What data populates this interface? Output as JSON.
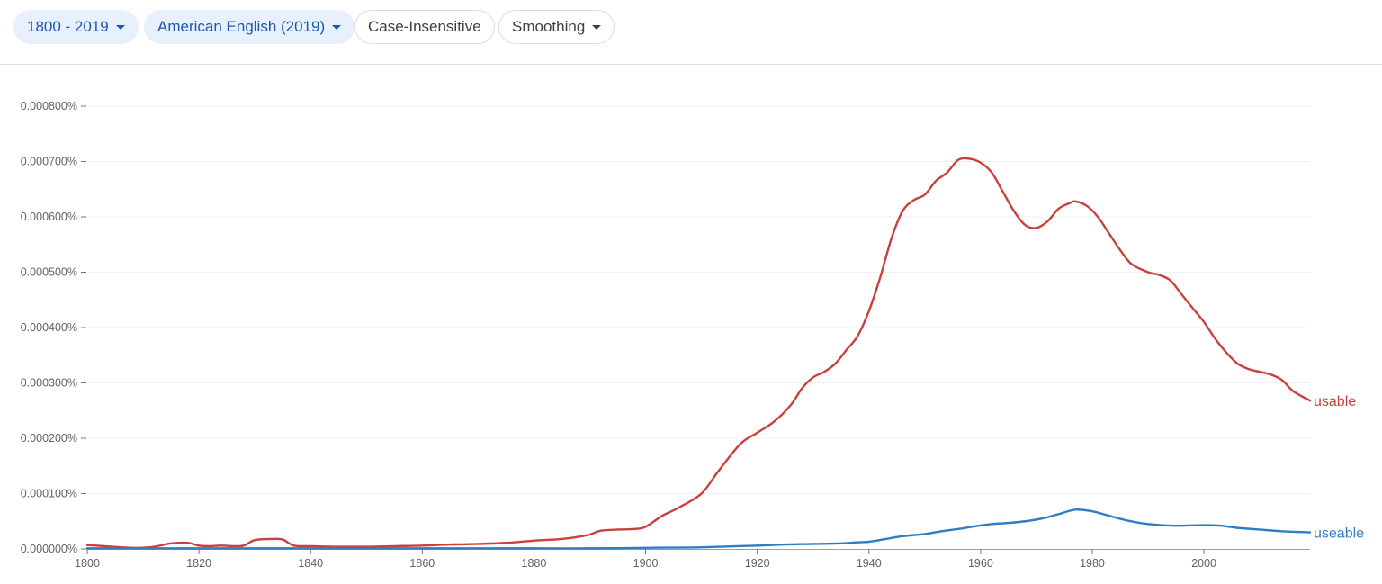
{
  "toolbar": {
    "years_label": "1800 - 2019",
    "corpus_label": "American English (2019)",
    "case_label": "Case-Insensitive",
    "smoothing_label": "Smoothing"
  },
  "colors": {
    "usable": "#c9403e",
    "useable": "#2f7ec4",
    "chip_selected_bg": "#e8f0fe",
    "chip_selected_text": "#1a57b0"
  },
  "chart_data": {
    "type": "line",
    "title": "",
    "xlabel": "",
    "ylabel": "",
    "xlim": [
      1800,
      2019
    ],
    "ylim": [
      0,
      8e-06
    ],
    "x_ticks": [
      1800,
      1820,
      1840,
      1860,
      1880,
      1900,
      1920,
      1940,
      1960,
      1980,
      2000
    ],
    "x_tick_labels": [
      "1800",
      "1820",
      "1840",
      "1860",
      "1880",
      "1900",
      "1920",
      "1940",
      "1960",
      "1980",
      "2000"
    ],
    "y_ticks": [
      0,
      1e-06,
      2e-06,
      3e-06,
      4e-06,
      5e-06,
      6e-06,
      7e-06,
      8e-06
    ],
    "y_tick_labels": [
      "0.000000%",
      "0.000100%",
      "0.000200%",
      "0.000300%",
      "0.000400%",
      "0.000500%",
      "0.000600%",
      "0.000700%",
      "0.000800%"
    ],
    "series": [
      {
        "name": "usable",
        "label": "usable",
        "color": "#c9403e",
        "x": [
          1800,
          1803,
          1806,
          1809,
          1812,
          1815,
          1818,
          1820,
          1822,
          1824,
          1826,
          1828,
          1830,
          1833,
          1835,
          1837,
          1840,
          1845,
          1850,
          1855,
          1860,
          1865,
          1870,
          1875,
          1880,
          1885,
          1888,
          1890,
          1892,
          1895,
          1898,
          1900,
          1903,
          1906,
          1910,
          1913,
          1917,
          1920,
          1923,
          1926,
          1928,
          1930,
          1932,
          1934,
          1936,
          1938,
          1940,
          1942,
          1944,
          1946,
          1948,
          1950,
          1952,
          1954,
          1956,
          1958,
          1960,
          1962,
          1964,
          1966,
          1968,
          1970,
          1972,
          1974,
          1976,
          1977,
          1979,
          1981,
          1983,
          1985,
          1987,
          1990,
          1992,
          1994,
          1996,
          1998,
          2000,
          2002,
          2004,
          2006,
          2008,
          2010,
          2012,
          2014,
          2016,
          2019
        ],
        "values": [
          7e-08,
          5e-08,
          3e-08,
          2e-08,
          4e-08,
          1e-07,
          1.1e-07,
          6e-08,
          5e-08,
          6e-08,
          5e-08,
          6e-08,
          1.6e-07,
          1.8e-07,
          1.7e-07,
          6e-08,
          5e-08,
          4e-08,
          4e-08,
          5e-08,
          6e-08,
          8e-08,
          9e-08,
          1.1e-07,
          1.5e-07,
          1.8e-07,
          2.2e-07,
          2.6e-07,
          3.3e-07,
          3.5e-07,
          3.6e-07,
          4e-07,
          6e-07,
          7.5e-07,
          1e-06,
          1.4e-06,
          1.9e-06,
          2.1e-06,
          2.3e-06,
          2.6e-06,
          2.9e-06,
          3.1e-06,
          3.2e-06,
          3.35e-06,
          3.6e-06,
          3.85e-06,
          4.3e-06,
          4.9e-06,
          5.6e-06,
          6.1e-06,
          6.3e-06,
          6.4e-06,
          6.65e-06,
          6.8e-06,
          7.03e-06,
          7.05e-06,
          6.98e-06,
          6.8e-06,
          6.45e-06,
          6.1e-06,
          5.85e-06,
          5.8e-06,
          5.92e-06,
          6.15e-06,
          6.25e-06,
          6.28e-06,
          6.2e-06,
          6e-06,
          5.7e-06,
          5.4e-06,
          5.15e-06,
          5e-06,
          4.95e-06,
          4.85e-06,
          4.6e-06,
          4.35e-06,
          4.1e-06,
          3.8e-06,
          3.55e-06,
          3.35e-06,
          3.25e-06,
          3.2e-06,
          3.15e-06,
          3.05e-06,
          2.85e-06,
          2.68e-06
        ]
      },
      {
        "name": "useable",
        "label": "useable",
        "color": "#2f7ec4",
        "x": [
          1800,
          1810,
          1820,
          1830,
          1840,
          1850,
          1860,
          1870,
          1880,
          1890,
          1900,
          1910,
          1920,
          1925,
          1930,
          1935,
          1938,
          1940,
          1943,
          1946,
          1950,
          1953,
          1956,
          1959,
          1962,
          1965,
          1968,
          1971,
          1974,
          1977,
          1980,
          1983,
          1986,
          1990,
          1995,
          2000,
          2003,
          2006,
          2010,
          2014,
          2019
        ],
        "values": [
          1e-08,
          1e-08,
          1e-08,
          1e-08,
          1e-08,
          1e-08,
          1e-08,
          1e-08,
          1e-08,
          1e-08,
          2e-08,
          3e-08,
          6e-08,
          8e-08,
          9e-08,
          1e-07,
          1.2e-07,
          1.3e-07,
          1.8e-07,
          2.3e-07,
          2.7e-07,
          3.2e-07,
          3.6e-07,
          4.1e-07,
          4.5e-07,
          4.7e-07,
          5e-07,
          5.5e-07,
          6.3e-07,
          7.1e-07,
          6.8e-07,
          6e-07,
          5.2e-07,
          4.5e-07,
          4.2e-07,
          4.3e-07,
          4.2e-07,
          3.8e-07,
          3.5e-07,
          3.2e-07,
          3e-07
        ]
      }
    ]
  }
}
